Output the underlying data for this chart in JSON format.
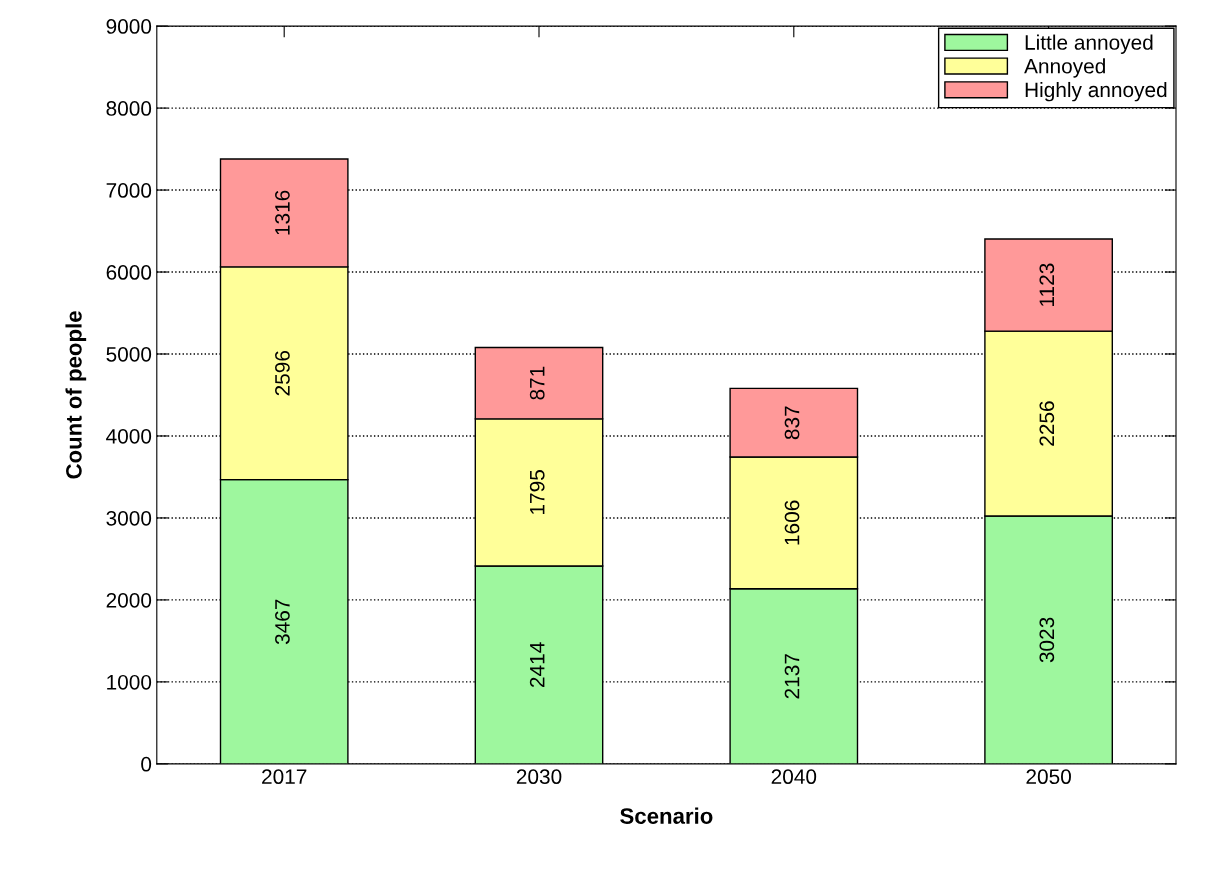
{
  "chart_data": {
    "type": "bar",
    "xlabel": "Scenario",
    "ylabel": "Count of people",
    "categories": [
      "2017",
      "2030",
      "2040",
      "2050"
    ],
    "series": [
      {
        "name": "Little annoyed",
        "color": "#9ef79e",
        "values": [
          3467,
          2414,
          2137,
          3023
        ]
      },
      {
        "name": "Annoyed",
        "color": "#ffff99",
        "values": [
          2596,
          1795,
          1606,
          2256
        ]
      },
      {
        "name": "Highly annoyed",
        "color": "#ff9999",
        "values": [
          1316,
          871,
          837,
          1123
        ]
      }
    ],
    "stacked": true,
    "data_labels": true,
    "ylim": [
      0,
      9000
    ],
    "yticks": [
      0,
      1000,
      2000,
      3000,
      4000,
      5000,
      6000,
      7000,
      8000,
      9000
    ],
    "grid": "y",
    "legend": "top right"
  }
}
